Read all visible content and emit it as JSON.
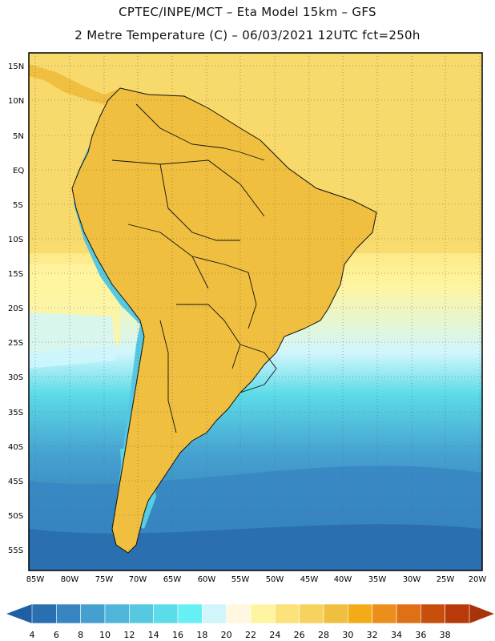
{
  "header": {
    "line1": "CPTEC/INPE/MCT –  Eta Model 15km – GFS",
    "line2": "2 Metre Temperature (C) – 06/03/2021 12UTC fct=250h"
  },
  "axes": {
    "lat_labels": [
      "15N",
      "10N",
      "5N",
      "EQ",
      "5S",
      "10S",
      "15S",
      "20S",
      "25S",
      "30S",
      "35S",
      "40S",
      "45S",
      "50S",
      "55S"
    ],
    "lon_labels": [
      "85W",
      "80W",
      "75W",
      "70W",
      "65W",
      "60W",
      "55W",
      "50W",
      "45W",
      "40W",
      "35W",
      "30W",
      "25W",
      "20W"
    ]
  },
  "colorbar": {
    "labels": [
      "4",
      "6",
      "8",
      "10",
      "12",
      "14",
      "16",
      "18",
      "20",
      "22",
      "24",
      "26",
      "28",
      "30",
      "32",
      "34",
      "36",
      "38"
    ],
    "colors": [
      "#2a6fb0",
      "#3786c2",
      "#45a0cf",
      "#4fb6d9",
      "#56c8e0",
      "#5cdbe8",
      "#66f0f5",
      "#d0f6fc",
      "#fff7e0",
      "#fff5a0",
      "#fbe27a",
      "#f6d25e",
      "#f0bf3f",
      "#f3ac17",
      "#ec8e1c",
      "#e07016",
      "#c84e0c",
      "#b83a0a"
    ],
    "low_arrow_color": "#1f5fa5",
    "high_arrow_color": "#a8350a"
  },
  "palette": {
    "ocean_south": "#2a6fb0",
    "ocean_mid": "#4fb6d9",
    "ocean_tropic": "#fbe27a",
    "land_warm": "#f0bf3f",
    "land_hot": "#e07016",
    "andes": "#56c8e0",
    "border": "#111111"
  }
}
